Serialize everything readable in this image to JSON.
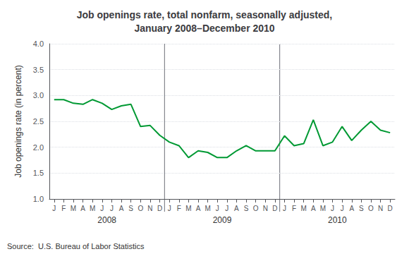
{
  "chart_data": {
    "type": "line",
    "title": "Job openings rate, total nonfarm, seasonally adjusted,\nJanuary 2008–December 2010",
    "ylabel": "Job openings rate (in percent)",
    "source": "Source:  U.S. Bureau of Labor Statistics",
    "categories": [
      "J",
      "F",
      "M",
      "A",
      "M",
      "J",
      "J",
      "A",
      "S",
      "O",
      "N",
      "D",
      "J",
      "F",
      "M",
      "A",
      "M",
      "J",
      "J",
      "A",
      "S",
      "O",
      "N",
      "D",
      "J",
      "F",
      "M",
      "A",
      "M",
      "J",
      "J",
      "A",
      "S",
      "O",
      "N",
      "D"
    ],
    "values": [
      2.92,
      2.92,
      2.85,
      2.83,
      2.92,
      2.85,
      2.73,
      2.8,
      2.83,
      2.4,
      2.42,
      2.23,
      2.1,
      2.03,
      1.8,
      1.93,
      1.9,
      1.8,
      1.8,
      1.93,
      2.03,
      1.93,
      1.93,
      1.93,
      2.22,
      2.03,
      2.07,
      2.53,
      2.03,
      2.1,
      2.4,
      2.13,
      2.33,
      2.5,
      2.33,
      2.28
    ],
    "color": "#009933",
    "ylim": [
      1.0,
      4.0
    ],
    "yticks": [
      {
        "value": 1.0,
        "label": "1.0"
      },
      {
        "value": 1.5,
        "label": "1.5"
      },
      {
        "value": 2.0,
        "label": "2.0"
      },
      {
        "value": 2.5,
        "label": "2.5"
      },
      {
        "value": 3.0,
        "label": "3.0"
      },
      {
        "value": 3.5,
        "label": "3.5"
      },
      {
        "value": 4.0,
        "label": "4.0"
      }
    ],
    "grid": true,
    "annotations": [
      "2008",
      "2009",
      "2010"
    ]
  }
}
